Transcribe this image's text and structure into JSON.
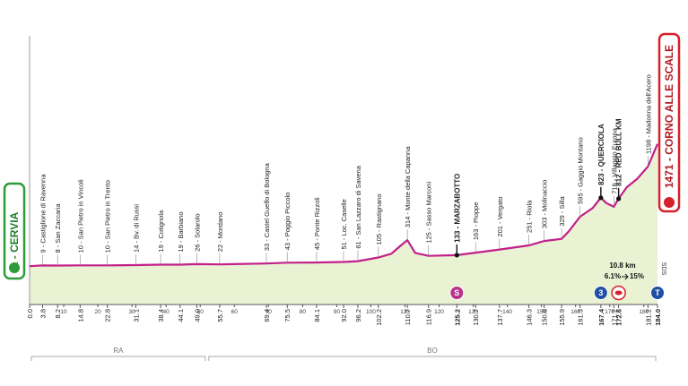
{
  "chart_data": {
    "type": "profile",
    "color": "#c21f8a",
    "fill": "#e9f2d2",
    "xlim": [
      0,
      184
    ],
    "ylim": [
      -460,
      2770
    ],
    "xticks": [
      10,
      20,
      30,
      40,
      50,
      60,
      70,
      80,
      90,
      100,
      110,
      120,
      130,
      140,
      150,
      160,
      170,
      180
    ],
    "x": [
      0,
      3.8,
      8.2,
      14.8,
      22.8,
      31.1,
      38.4,
      44.1,
      49,
      55.7,
      69.4,
      75.5,
      84.1,
      92,
      96.2,
      102.2,
      106,
      108.5,
      110.7,
      113,
      116.9,
      125.2,
      130.7,
      137.7,
      146.3,
      150.8,
      155.9,
      158,
      161.3,
      165,
      167.4,
      169,
      171.2,
      172.6,
      175,
      178,
      181.2,
      184
    ],
    "y": [
      1,
      9,
      8,
      10,
      10,
      14,
      19,
      19,
      26,
      22,
      33,
      43,
      45,
      51,
      61,
      105,
      150,
      240,
      314,
      160,
      125,
      133,
      163,
      201,
      251,
      303,
      329,
      420,
      595,
      700,
      823,
      760,
      716,
      812,
      950,
      1050,
      1198,
      1471
    ],
    "start": {
      "label": "1 - CERVIA"
    },
    "finish": {
      "label": "1471 - CORNO ALLE SCALE",
      "icon": "T"
    },
    "waypoints": [
      {
        "km": {
          "value": 0,
          "label": "0.0"
        }
      },
      {
        "km": 3.8,
        "label": "9 - Castiglione di Ravenna"
      },
      {
        "km": 8.2,
        "label": "8 - San Zaccaria"
      },
      {
        "km": 14.8,
        "label": "10 - San Pietro in Vincoli"
      },
      {
        "km": 22.8,
        "label": "10 - San Pietro in Trento"
      },
      {
        "km": 31.1,
        "label": "14 - Bv. di Russi"
      },
      {
        "km": 38.4,
        "label": "19 - Cotignola"
      },
      {
        "km": 44.1,
        "label": "19 - Barbiano"
      },
      {
        "km": {
          "value": 49,
          "label": "49.0"
        },
        "label": "26 - Solarolo"
      },
      {
        "km": 55.7,
        "label": "22 - Mordano"
      },
      {
        "km": 69.4,
        "label": "33 - Castel Guelfo di Bologna"
      },
      {
        "km": 75.5,
        "label": "43 - Poggio Piccolo"
      },
      {
        "km": 84.1,
        "label": "45 - Ponte Rizzoli"
      },
      {
        "km": {
          "value": 92,
          "label": "92.0"
        },
        "label": "51 - Loc. Caselle"
      },
      {
        "km": 96.2,
        "label": "61 - San Lazzaro di Savena"
      },
      {
        "km": 102.2,
        "label": "105 - Rastignano"
      },
      {
        "km": 110.7,
        "label": "314 - Monte della Capanna"
      },
      {
        "km": 116.9,
        "label": "125 - Sasso Marconi"
      },
      {
        "km": 125.2,
        "label": "133 - MARZABOTTO",
        "highlight": true,
        "icon": "S",
        "icon_color": "#b5338e"
      },
      {
        "km": 130.7,
        "label": "163 - Pioppe"
      },
      {
        "km": 137.7,
        "label": "201 - Vergato"
      },
      {
        "km": 146.3,
        "label": "251 - Riola"
      },
      {
        "km": 150.8,
        "label": "303 - Molinaccio"
      },
      {
        "km": 155.9,
        "label": "329 - Silla"
      },
      {
        "km": 161.3,
        "label": "595 - Gaggio Montano"
      },
      {
        "km": 167.4,
        "label": "823 - QUERCIOLA",
        "highlight": true,
        "icon": "3",
        "icon_color": "#1f4ea3"
      },
      {
        "km": 171.2,
        "label": "716 - Villaggio Europa"
      },
      {
        "km": 172.6,
        "label": "812 - RED BULL KM",
        "highlight": true
      },
      {
        "km": 181.2,
        "label": "1198 - Madonna dell'Acero"
      },
      {
        "km": {
          "value": 184,
          "label": "184.0"
        },
        "highlight": true
      }
    ],
    "annotations": [
      "10.8 km",
      "6.1%",
      "15%",
      "SDS"
    ],
    "regions": [
      {
        "label": "RA",
        "from": 0,
        "to": 52
      },
      {
        "label": "BO",
        "from": 52,
        "to": 184
      }
    ]
  }
}
